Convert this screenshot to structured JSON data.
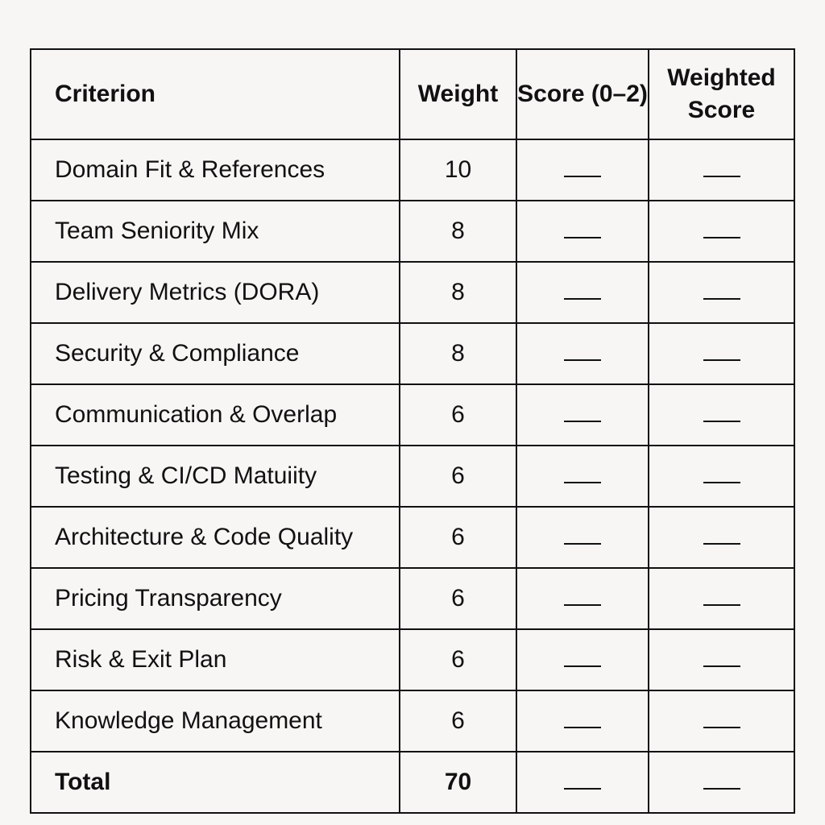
{
  "headers": {
    "criterion": "Criterion",
    "weight": "Weight",
    "score": "Score (0–2)",
    "weighted_score": "Weighted Score"
  },
  "rows": [
    {
      "criterion": "Domain Fit & References",
      "weight": "10"
    },
    {
      "criterion": "Team Seniority Mix",
      "weight": "8"
    },
    {
      "criterion": "Delivery Metrics (DORA)",
      "weight": "8"
    },
    {
      "criterion": "Security & Compliance",
      "weight": "8"
    },
    {
      "criterion": "Communication & Overlap",
      "weight": "6"
    },
    {
      "criterion": "Testing & CI/CD Matuiity",
      "weight": "6"
    },
    {
      "criterion": "Architecture & Code Quality",
      "weight": "6"
    },
    {
      "criterion": "Pricing Transparency",
      "weight": "6"
    },
    {
      "criterion": "Risk & Exit Plan",
      "weight": "6"
    },
    {
      "criterion": "Knowledge Management",
      "weight": "6"
    }
  ],
  "total": {
    "label": "Total",
    "weight": "70"
  }
}
